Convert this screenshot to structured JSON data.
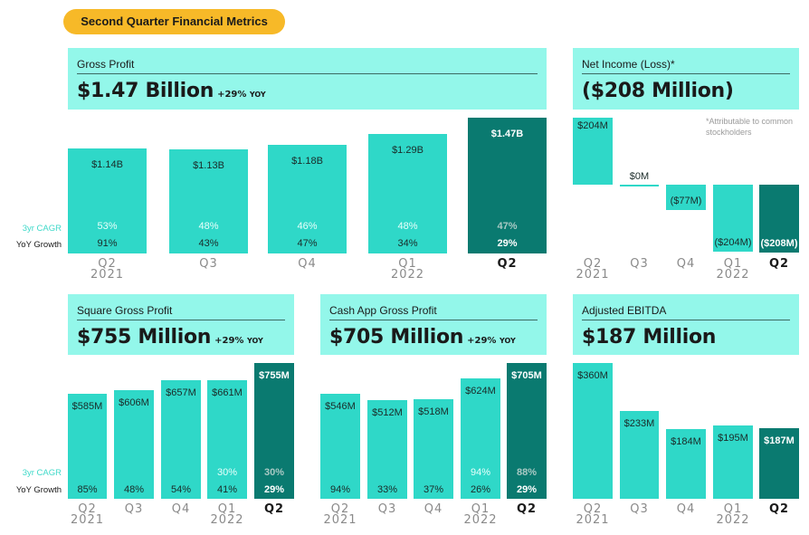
{
  "title": "Second Quarter Financial Metrics",
  "colors": {
    "pill": "#f7b928",
    "header_bg": "#93f7ea",
    "bar": "#2fd8c8",
    "bar_current": "#0a7a70"
  },
  "row_labels": {
    "cagr": "3yr CAGR",
    "yoy": "YoY Growth"
  },
  "quarters": [
    {
      "q": "Q2",
      "year": "2021"
    },
    {
      "q": "Q3",
      "year": ""
    },
    {
      "q": "Q4",
      "year": ""
    },
    {
      "q": "Q1",
      "year": "2022"
    },
    {
      "q": "Q2",
      "year": ""
    }
  ],
  "footnote": "*Attributable to common stockholders",
  "chart_data": [
    {
      "id": "gross-profit",
      "type": "bar",
      "title": "Gross Profit",
      "headline": "$1.47 Billion",
      "headline_yoy": "+29%",
      "headline_yoy_suffix": "YOY",
      "categories": [
        "Q2 2021",
        "Q3",
        "Q4",
        "Q1 2022",
        "Q2"
      ],
      "values": [
        1.14,
        1.13,
        1.18,
        1.29,
        1.47
      ],
      "unit": "B",
      "labels": [
        "$1.14B",
        "$1.13B",
        "$1.18B",
        "$1.29B",
        "$1.47B"
      ],
      "cagr": [
        "53%",
        "48%",
        "46%",
        "48%",
        "47%"
      ],
      "yoy": [
        "91%",
        "43%",
        "47%",
        "34%",
        "29%"
      ]
    },
    {
      "id": "net-income",
      "type": "bar",
      "title": "Net Income (Loss)*",
      "headline": "($208 Million)",
      "headline_yoy": "",
      "headline_yoy_suffix": "",
      "categories": [
        "Q2 2021",
        "Q3",
        "Q4",
        "Q1 2022",
        "Q2"
      ],
      "values": [
        204,
        0,
        -77,
        -204,
        -208
      ],
      "unit": "M",
      "labels": [
        "$204M",
        "$0M",
        "($77M)",
        "($204M)",
        "($208M)"
      ]
    },
    {
      "id": "square-gross-profit",
      "type": "bar",
      "title": "Square Gross Profit",
      "headline": "$755 Million",
      "headline_yoy": "+29%",
      "headline_yoy_suffix": "YOY",
      "categories": [
        "Q2 2021",
        "Q3",
        "Q4",
        "Q1 2022",
        "Q2"
      ],
      "values": [
        585,
        606,
        657,
        661,
        755
      ],
      "unit": "M",
      "labels": [
        "$585M",
        "$606M",
        "$657M",
        "$661M",
        "$755M"
      ],
      "cagr": [
        "",
        "",
        "",
        "30%",
        "30%"
      ],
      "yoy": [
        "85%",
        "48%",
        "54%",
        "41%",
        "29%"
      ]
    },
    {
      "id": "cash-app-gross-profit",
      "type": "bar",
      "title": "Cash App Gross Profit",
      "headline": "$705 Million",
      "headline_yoy": "+29%",
      "headline_yoy_suffix": "YOY",
      "categories": [
        "Q2 2021",
        "Q3",
        "Q4",
        "Q1 2022",
        "Q2"
      ],
      "values": [
        546,
        512,
        518,
        624,
        705
      ],
      "unit": "M",
      "labels": [
        "$546M",
        "$512M",
        "$518M",
        "$624M",
        "$705M"
      ],
      "cagr": [
        "",
        "",
        "",
        "94%",
        "88%"
      ],
      "yoy": [
        "94%",
        "33%",
        "37%",
        "26%",
        "29%"
      ]
    },
    {
      "id": "adjusted-ebitda",
      "type": "bar",
      "title": "Adjusted EBITDA",
      "headline": "$187 Million",
      "headline_yoy": "",
      "headline_yoy_suffix": "",
      "categories": [
        "Q2 2021",
        "Q3",
        "Q4",
        "Q1 2022",
        "Q2"
      ],
      "values": [
        360,
        233,
        184,
        195,
        187
      ],
      "unit": "M",
      "labels": [
        "$360M",
        "$233M",
        "$184M",
        "$195M",
        "$187M"
      ]
    }
  ]
}
